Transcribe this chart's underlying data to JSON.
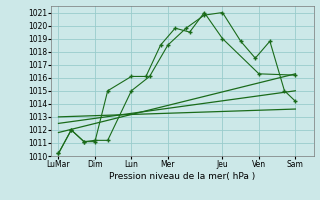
{
  "background_color": "#cce8e8",
  "grid_color": "#99cccc",
  "line_color": "#1a6b1a",
  "xlabel": "Pression niveau de la mer( hPa )",
  "ylim": [
    1010,
    1021.5
  ],
  "yticks": [
    1010,
    1011,
    1012,
    1013,
    1014,
    1015,
    1016,
    1017,
    1018,
    1019,
    1020,
    1021
  ],
  "xtick_labels": [
    "LuMar",
    "Dim",
    "Lun",
    "Mer",
    "Jeu",
    "Ven",
    "Sam"
  ],
  "xtick_pos": [
    0.0,
    1.0,
    2.0,
    3.0,
    4.5,
    5.5,
    6.5
  ],
  "xlim": [
    -0.2,
    7.0
  ],
  "line1_x": [
    0.0,
    0.35,
    0.7,
    1.0,
    1.35,
    2.0,
    2.4,
    2.8,
    3.2,
    3.6,
    4.0,
    4.5,
    5.5,
    6.5
  ],
  "line1_y": [
    1010.2,
    1012.0,
    1011.1,
    1011.1,
    1015.0,
    1016.1,
    1016.1,
    1018.5,
    1019.8,
    1019.5,
    1021.0,
    1019.0,
    1016.3,
    1016.2
  ],
  "line2_x": [
    0.0,
    0.35,
    0.7,
    1.0,
    1.35,
    2.0,
    2.5,
    3.0,
    3.5,
    4.0,
    4.5,
    5.0,
    5.4,
    5.8,
    6.2,
    6.5
  ],
  "line2_y": [
    1010.2,
    1012.0,
    1011.1,
    1011.2,
    1011.2,
    1015.0,
    1016.1,
    1018.5,
    1019.8,
    1020.8,
    1021.0,
    1018.8,
    1017.5,
    1018.8,
    1015.0,
    1014.2
  ],
  "line3_x": [
    0.0,
    6.5
  ],
  "line3_y": [
    1011.8,
    1016.3
  ],
  "line4_x": [
    0.0,
    6.5
  ],
  "line4_y": [
    1012.5,
    1015.0
  ],
  "line5_x": [
    0.0,
    6.5
  ],
  "line5_y": [
    1013.0,
    1013.6
  ]
}
